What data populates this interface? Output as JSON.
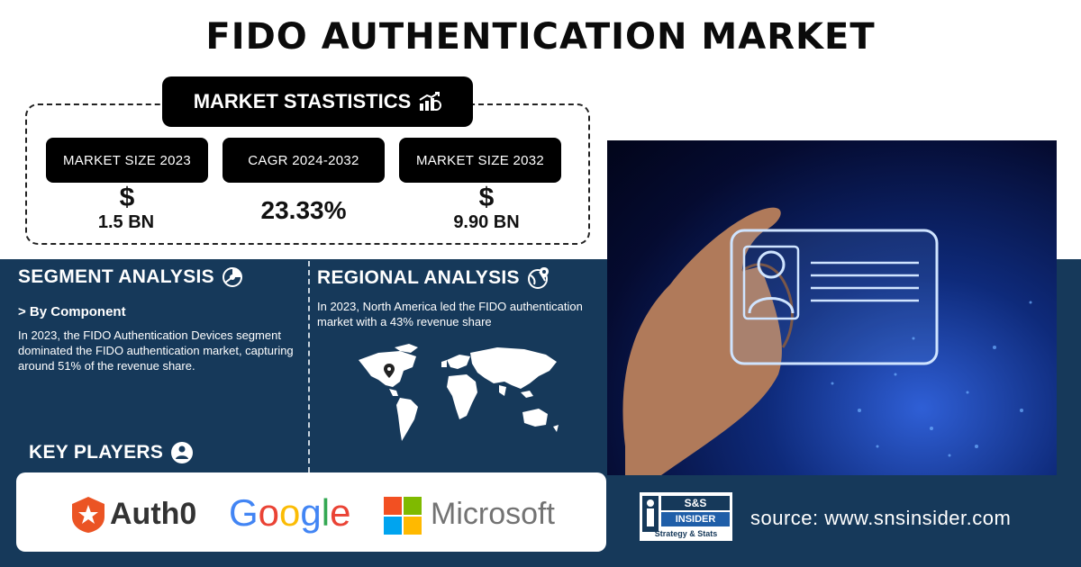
{
  "title": "FIDO AUTHENTICATION MARKET",
  "market_stats": {
    "header": "MARKET STASTISTICS",
    "items": [
      {
        "label": "MARKET SIZE 2023",
        "symbol": "$",
        "value": "1.5 BN"
      },
      {
        "label": "CAGR 2024-2032",
        "value": "23.33%"
      },
      {
        "label": "MARKET SIZE 2032",
        "symbol": "$",
        "value": "9.90 BN"
      }
    ]
  },
  "segment": {
    "heading": "SEGMENT ANALYSIS",
    "sub": "> By Component",
    "text": "In 2023, the FIDO Authentication Devices segment dominated the FIDO authentication market, capturing around 51% of the revenue share."
  },
  "regional": {
    "heading": "REGIONAL ANALYSIS",
    "text": "In 2023, North America led the FIDO authentication market with a 43% revenue share"
  },
  "key_players": {
    "heading": "KEY PLAYERS",
    "logos": [
      "Auth0",
      "Google",
      "Microsoft"
    ]
  },
  "source": {
    "logo_top": "S&S",
    "logo_mid": "INSIDER",
    "logo_bottom": "Strategy & Stats",
    "text": "source: www.snsinsider.com"
  },
  "colors": {
    "panel": "#16395a",
    "google_blue": "#4285F4",
    "google_red": "#EA4335",
    "google_yellow": "#FBBC05",
    "google_green": "#34A853",
    "auth0_orange": "#EB5424"
  }
}
